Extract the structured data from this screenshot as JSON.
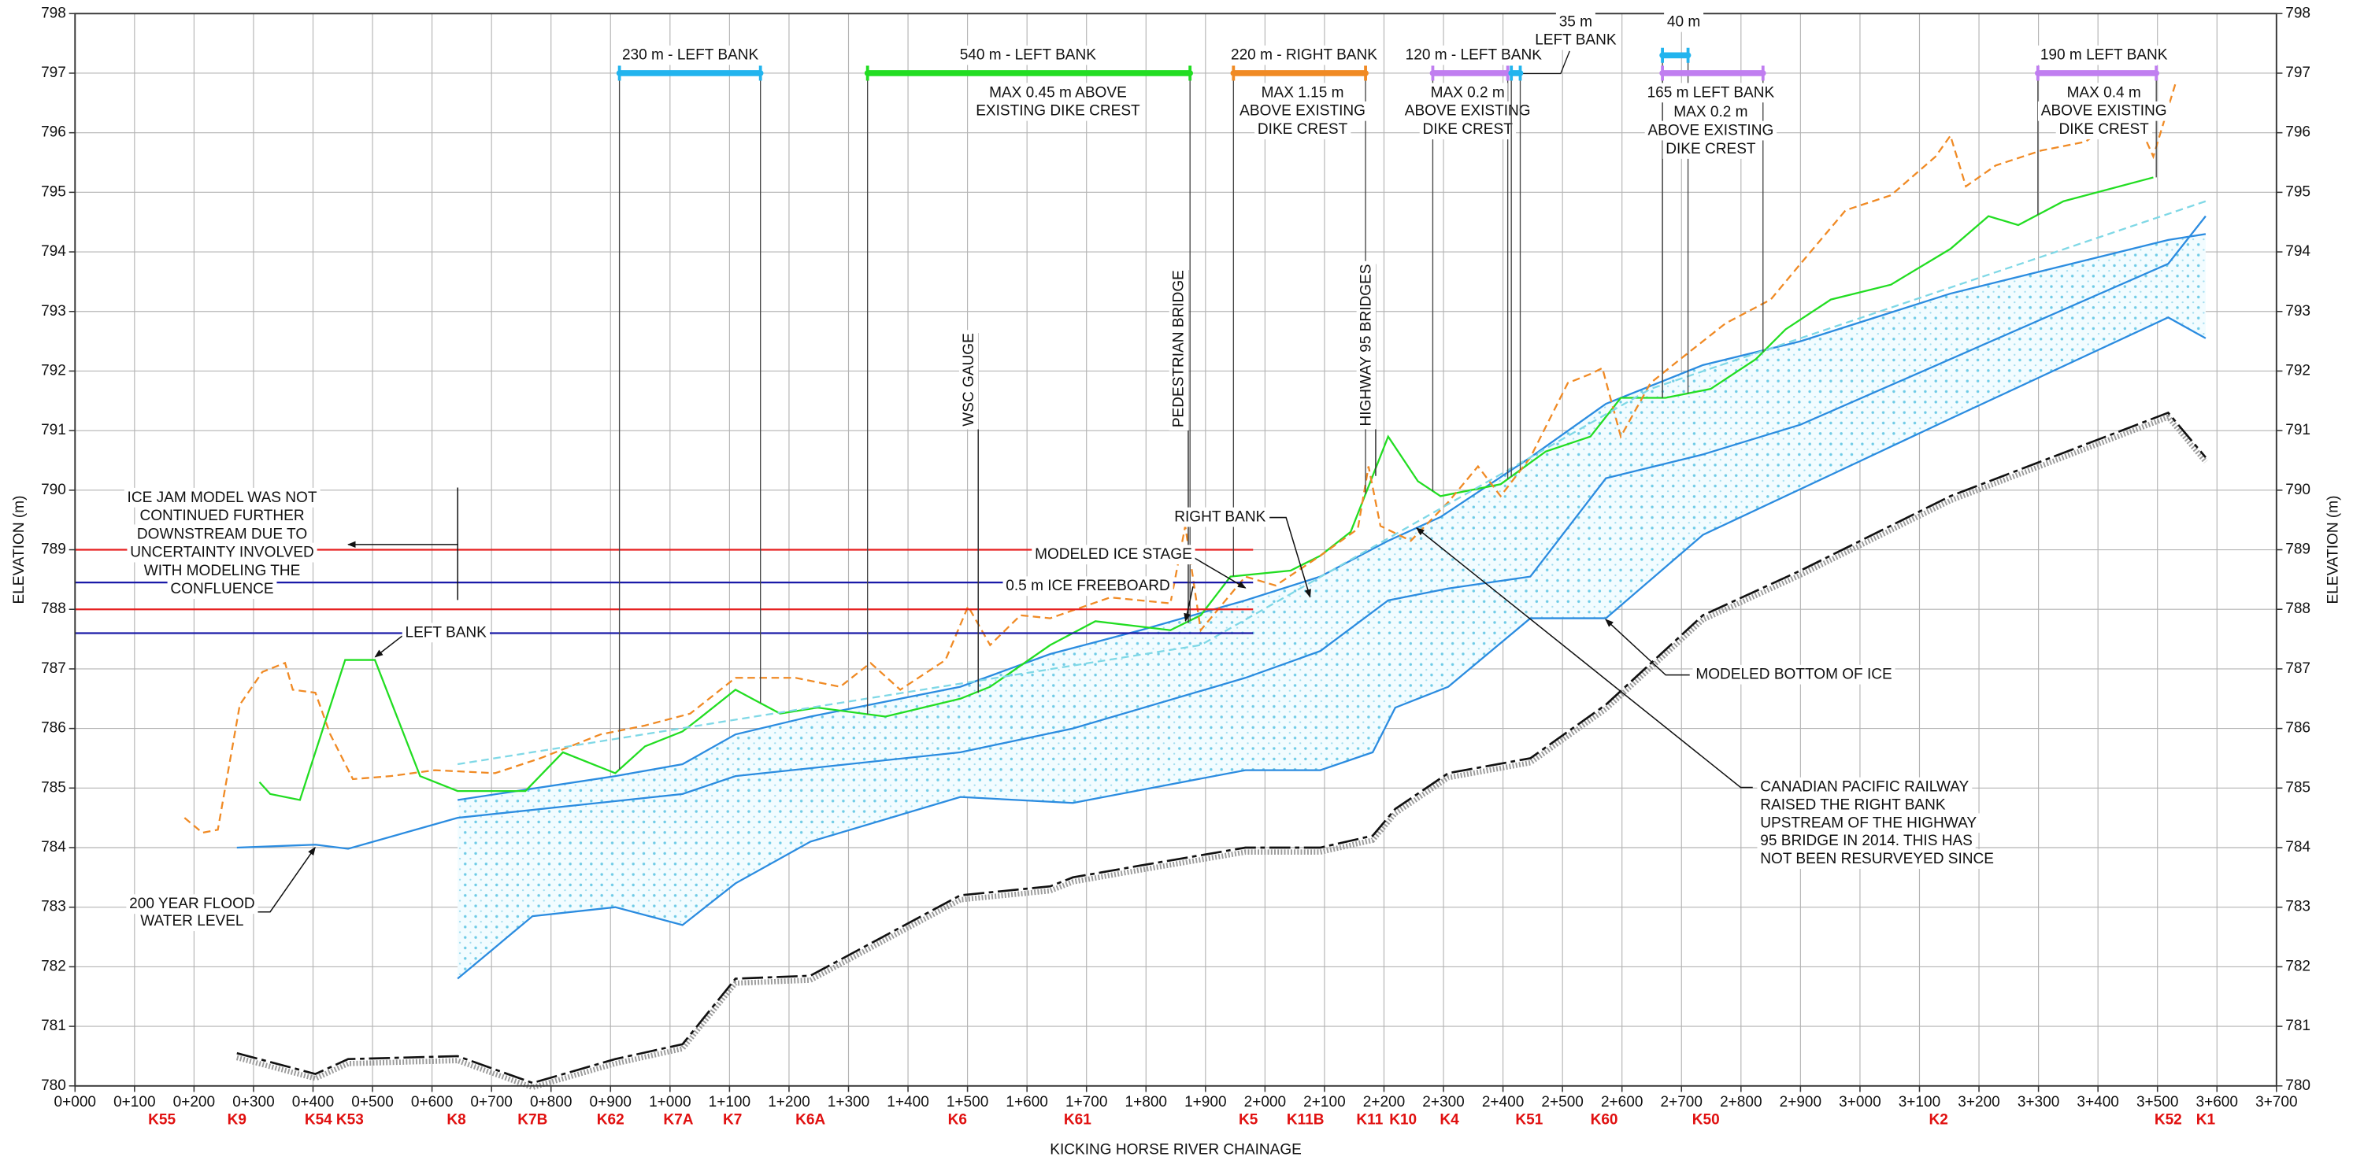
{
  "chart_data": {
    "type": "line",
    "x_label": "KICKING HORSE RIVER CHAINAGE",
    "y_label": "ELEVATION (m)",
    "y2_label": "ELEVATION (m)",
    "xlim": [
      0,
      3700
    ],
    "ylim": [
      780,
      798
    ],
    "y2lim": [
      780,
      798
    ],
    "grid": true,
    "xticks": [
      {
        "value": 0,
        "label": "0+000"
      },
      {
        "value": 100,
        "label": "0+100"
      },
      {
        "value": 200,
        "label": "0+200"
      },
      {
        "value": 300,
        "label": "0+300"
      },
      {
        "value": 400,
        "label": "0+400"
      },
      {
        "value": 500,
        "label": "0+500"
      },
      {
        "value": 600,
        "label": "0+600"
      },
      {
        "value": 700,
        "label": "0+700"
      },
      {
        "value": 800,
        "label": "0+800"
      },
      {
        "value": 900,
        "label": "0+900"
      },
      {
        "value": 1000,
        "label": "1+000"
      },
      {
        "value": 1100,
        "label": "1+100"
      },
      {
        "value": 1200,
        "label": "1+200"
      },
      {
        "value": 1300,
        "label": "1+300"
      },
      {
        "value": 1400,
        "label": "1+400"
      },
      {
        "value": 1500,
        "label": "1+500"
      },
      {
        "value": 1600,
        "label": "1+600"
      },
      {
        "value": 1700,
        "label": "1+700"
      },
      {
        "value": 1800,
        "label": "1+800"
      },
      {
        "value": 1900,
        "label": "1+900"
      },
      {
        "value": 2000,
        "label": "2+000"
      },
      {
        "value": 2100,
        "label": "2+100"
      },
      {
        "value": 2200,
        "label": "2+200"
      },
      {
        "value": 2300,
        "label": "2+300"
      },
      {
        "value": 2400,
        "label": "2+400"
      },
      {
        "value": 2500,
        "label": "2+500"
      },
      {
        "value": 2600,
        "label": "2+600"
      },
      {
        "value": 2700,
        "label": "2+700"
      },
      {
        "value": 2800,
        "label": "2+800"
      },
      {
        "value": 2900,
        "label": "2+900"
      },
      {
        "value": 3000,
        "label": "3+000"
      },
      {
        "value": 3100,
        "label": "3+100"
      },
      {
        "value": 3200,
        "label": "3+200"
      },
      {
        "value": 3300,
        "label": "3+300"
      },
      {
        "value": 3400,
        "label": "3+400"
      },
      {
        "value": 3500,
        "label": "3+500"
      },
      {
        "value": 3600,
        "label": "3+600"
      },
      {
        "value": 3700,
        "label": "3+700"
      }
    ],
    "yticks": [
      780,
      781,
      782,
      783,
      784,
      785,
      786,
      787,
      788,
      789,
      790,
      791,
      792,
      793,
      794,
      795,
      796,
      797,
      798
    ],
    "y2ticks": [
      780,
      781,
      782,
      783,
      784,
      785,
      786,
      787,
      788,
      789,
      790,
      791,
      792,
      793,
      794,
      795,
      796,
      797,
      798
    ],
    "series": [
      {
        "color": "#2b8ce0",
        "dashed": false,
        "x": [
          643,
          908,
          1021,
          1110,
          1236,
          1488,
          1639,
          1791,
          1967,
          2093,
          2207,
          2295,
          2446,
          2573,
          2736,
          2900,
          3152,
          3518,
          3581
        ],
        "values": [
          784.8,
          785.2,
          785.4,
          785.9,
          786.2,
          786.7,
          787.25,
          787.65,
          788.15,
          788.55,
          789.15,
          789.55,
          790.55,
          791.45,
          792.1,
          792.5,
          793.3,
          794.2,
          794.3
        ]
      },
      {
        "color": "#2b8ce0",
        "dashed": false,
        "x": [
          272,
          404,
          459,
          643,
          1021,
          1110,
          1488,
          1677,
          1967,
          2093,
          2207,
          2308,
          2446,
          2573,
          2736,
          2900,
          3152,
          3518,
          3581
        ],
        "values": [
          784.0,
          784.05,
          783.98,
          784.5,
          784.9,
          785.2,
          785.6,
          786.0,
          786.85,
          787.3,
          788.15,
          788.35,
          788.55,
          790.2,
          790.6,
          791.1,
          792.2,
          793.8,
          794.6
        ]
      },
      {
        "color": "#2b8ce0",
        "dashed": false,
        "x": [
          643,
          769,
          908,
          1021,
          1110,
          1236,
          1488,
          1677,
          1967,
          2093,
          2181,
          2219,
          2308,
          2446,
          2573,
          2736,
          3152,
          3518,
          3581
        ],
        "values": [
          781.8,
          782.85,
          783.0,
          782.7,
          783.4,
          784.1,
          784.85,
          784.75,
          785.3,
          785.3,
          785.6,
          786.35,
          786.7,
          787.85,
          787.85,
          789.25,
          791.2,
          792.9,
          792.55
        ]
      },
      {
        "color": "#111111",
        "dashed": true,
        "x": [
          272,
          404,
          459,
          643,
          769,
          908,
          1021,
          1110,
          1236,
          1488,
          1639,
          1677,
          1791,
          1967,
          2093,
          2181,
          2219,
          2308,
          2446,
          2573,
          2736,
          2900,
          3152,
          3518,
          3581
        ],
        "values": [
          780.55,
          780.2,
          780.45,
          780.5,
          780.05,
          780.45,
          780.7,
          781.8,
          781.85,
          783.2,
          783.35,
          783.5,
          783.7,
          784.0,
          784.0,
          784.2,
          784.65,
          785.25,
          785.5,
          786.4,
          787.9,
          788.65,
          789.9,
          791.3,
          790.55
        ]
      },
      {
        "color": "#22dd22",
        "dashed": false,
        "x": [
          310,
          328,
          378,
          454,
          504,
          580,
          643,
          757,
          820,
          908,
          958,
          1021,
          1047,
          1110,
          1185,
          1248,
          1362,
          1488,
          1538,
          1639,
          1715,
          1841,
          1892,
          1942,
          2043,
          2093,
          2144,
          2207,
          2257,
          2295,
          2396,
          2472,
          2547,
          2598,
          2673,
          2749,
          2825,
          2875,
          2951,
          3052,
          3152,
          3216,
          3266,
          3342,
          3493
        ],
        "values": [
          785.1,
          784.9,
          784.8,
          787.15,
          787.15,
          785.2,
          784.95,
          784.95,
          785.6,
          785.25,
          785.7,
          785.95,
          786.15,
          786.65,
          786.25,
          786.35,
          786.2,
          786.5,
          786.7,
          787.4,
          787.8,
          787.65,
          787.9,
          788.55,
          788.65,
          788.9,
          789.3,
          790.9,
          790.15,
          789.9,
          790.1,
          790.65,
          790.9,
          791.55,
          791.55,
          791.7,
          792.2,
          792.7,
          793.2,
          793.45,
          794.05,
          794.6,
          794.45,
          794.85,
          795.25
        ]
      },
      {
        "color": "#f08a24",
        "dashed": true,
        "x": [
          184,
          214,
          240,
          277,
          315,
          353,
          366,
          404,
          429,
          467,
          530,
          605,
          706,
          782,
          883,
          958,
          1034,
          1110,
          1211,
          1286,
          1337,
          1387,
          1463,
          1501,
          1538,
          1589,
          1639,
          1740,
          1841,
          1866,
          1892,
          1967,
          2018,
          2093,
          2156,
          2174,
          2194,
          2245,
          2308,
          2358,
          2396,
          2446,
          2509,
          2547,
          2567,
          2598,
          2648,
          2698,
          2774,
          2850,
          2900,
          2976,
          3052,
          3127,
          3152,
          3178,
          3228,
          3304,
          3379,
          3430,
          3455,
          3493,
          3531
        ],
        "values": [
          784.5,
          784.25,
          784.3,
          786.4,
          786.95,
          787.1,
          786.65,
          786.6,
          785.9,
          785.15,
          785.2,
          785.3,
          785.25,
          785.5,
          785.9,
          786.05,
          786.25,
          786.85,
          786.85,
          786.7,
          787.1,
          786.65,
          787.15,
          788.05,
          787.4,
          787.9,
          787.85,
          788.2,
          788.1,
          789.4,
          787.65,
          788.55,
          788.4,
          788.9,
          789.35,
          790.4,
          789.4,
          789.15,
          789.8,
          790.4,
          789.9,
          790.55,
          791.8,
          791.95,
          792.05,
          790.9,
          791.8,
          792.2,
          792.8,
          793.2,
          793.8,
          794.7,
          794.95,
          795.6,
          795.95,
          795.1,
          795.45,
          795.7,
          795.85,
          796.2,
          796.45,
          795.6,
          796.85
        ]
      },
      {
        "color": "#7fd8e6",
        "dashed": true,
        "x": [
          643,
          1892,
          2648,
          3581
        ],
        "values": [
          785.4,
          787.4,
          791.7,
          794.85
        ]
      },
      {
        "color": "#e62020",
        "dashed": false,
        "x": [
          0,
          1980
        ],
        "values": [
          789,
          789
        ]
      },
      {
        "color": "#e62020",
        "dashed": false,
        "x": [
          0,
          1980
        ],
        "values": [
          788,
          788
        ]
      },
      {
        "color": "#1a1aa8",
        "dashed": false,
        "x": [
          0,
          1980
        ],
        "values": [
          788.45,
          788.45
        ]
      },
      {
        "color": "#1a1aa8",
        "dashed": false,
        "x": [
          0,
          1980
        ],
        "values": [
          787.6,
          787.6
        ]
      }
    ],
    "dikes": [
      {
        "label": "230 m - LEFT BANK",
        "x": [
          915,
          1152
        ],
        "y": 797,
        "color": "#22b4ee"
      },
      {
        "label": "540 m -  LEFT BANK",
        "note": [
          "MAX 0.45 m ABOVE",
          "EXISTING DIKE CREST"
        ],
        "x": [
          1332,
          1874
        ],
        "y": 797,
        "color": "#22dd22"
      },
      {
        "label": "220 m - RIGHT BANK",
        "note": [
          "MAX 1.15 m",
          "ABOVE EXISTING",
          "DIKE CREST"
        ],
        "x": [
          1947,
          2169
        ],
        "y": 797,
        "color": "#f08a24"
      },
      {
        "label": "120 m - LEFT BANK",
        "note": [
          "MAX 0.2 m",
          "ABOVE EXISTING",
          "DIKE CREST"
        ],
        "x": [
          2282,
          2408
        ],
        "y": 797,
        "color": "#c07ef0"
      },
      {
        "label": "35 m",
        "note": [
          "LEFT BANK"
        ],
        "x": [
          2414,
          2429
        ],
        "y": 797,
        "color": "#22b4ee"
      },
      {
        "label": "40 m",
        "x": [
          2668,
          2711
        ],
        "y": 797.3,
        "color": "#22b4ee"
      },
      {
        "label": "165 m LEFT BANK",
        "note": [
          "MAX 0.2 m",
          "ABOVE EXISTING",
          "DIKE CREST"
        ],
        "x": [
          2668,
          2837
        ],
        "y": 797,
        "color": "#c07ef0"
      },
      {
        "label": "190 m LEFT BANK",
        "note": [
          "MAX 0.4 m",
          "ABOVE EXISTING",
          "DIKE CREST"
        ],
        "x": [
          3299,
          3498
        ],
        "y": 797,
        "color": "#c07ef0"
      }
    ],
    "structures": [
      {
        "label": "WSC GAUGE",
        "x": 1513
      },
      {
        "label": "PEDESTRIAN BRIDGE",
        "x": 1866
      },
      {
        "label": "HIGHWAY 95 BRIDGES",
        "x": 2181
      }
    ],
    "annotations": [
      {
        "lines": [
          "ICE JAM MODEL WAS NOT",
          "CONTINUED FURTHER",
          "DOWNSTREAM DUE TO",
          "UNCERTAINTY INVOLVED",
          "WITH MODELING THE",
          "CONFLUENCE"
        ]
      },
      {
        "lines": [
          "LEFT BANK"
        ]
      },
      {
        "lines": [
          "RIGHT BANK"
        ]
      },
      {
        "lines": [
          "MODELED ICE STAGE"
        ]
      },
      {
        "lines": [
          "0.5 m ICE FREEBOARD"
        ]
      },
      {
        "lines": [
          "MODELED BOTTOM OF ICE"
        ]
      },
      {
        "lines": [
          "CANADIAN PACIFIC RAILWAY",
          "RAISED THE RIGHT BANK",
          "UPSTREAM OF THE HIGHWAY",
          "95 BRIDGE IN 2014. THIS HAS",
          "NOT BEEN RESURVEYED SINCE"
        ]
      },
      {
        "lines": [
          "200 YEAR FLOOD",
          "WATER LEVEL"
        ]
      }
    ],
    "sections": [
      {
        "label": "K55",
        "x": 146
      },
      {
        "label": "K9",
        "x": 272
      },
      {
        "label": "K54",
        "x": 409
      },
      {
        "label": "K53",
        "x": 462
      },
      {
        "label": "K8",
        "x": 641
      },
      {
        "label": "K7B",
        "x": 769
      },
      {
        "label": "K62",
        "x": 900
      },
      {
        "label": "K7A",
        "x": 1014
      },
      {
        "label": "K7",
        "x": 1105
      },
      {
        "label": "K6A",
        "x": 1236
      },
      {
        "label": "K6",
        "x": 1483
      },
      {
        "label": "K61",
        "x": 1685
      },
      {
        "label": "K5",
        "x": 1972
      },
      {
        "label": "K11B",
        "x": 2068
      },
      {
        "label": "K11",
        "x": 2176
      },
      {
        "label": "K10",
        "x": 2232
      },
      {
        "label": "K4",
        "x": 2310
      },
      {
        "label": "K51",
        "x": 2444
      },
      {
        "label": "K60",
        "x": 2570
      },
      {
        "label": "K50",
        "x": 2741
      },
      {
        "label": "K2",
        "x": 3132
      },
      {
        "label": "K52",
        "x": 3518
      },
      {
        "label": "K1",
        "x": 3581
      }
    ]
  }
}
